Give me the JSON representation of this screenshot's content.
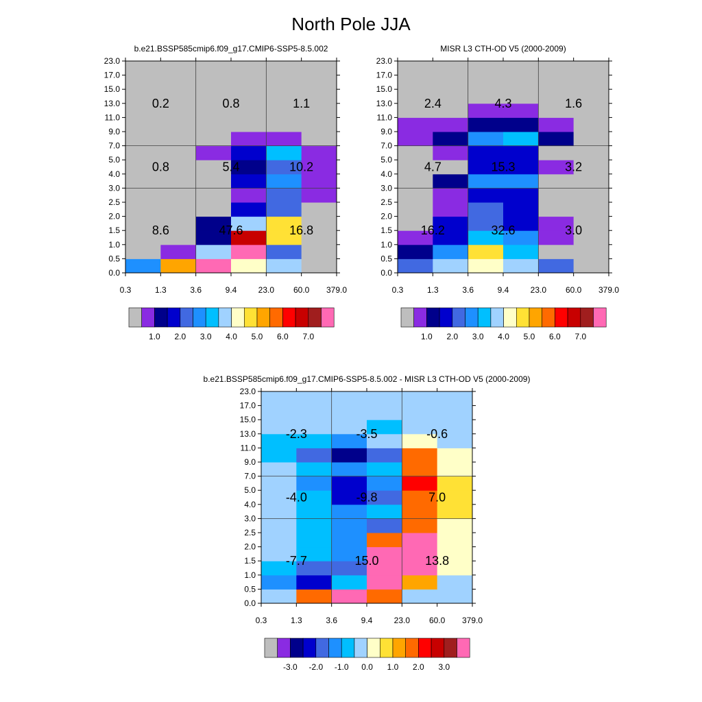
{
  "title": "North Pole JJA",
  "palettes": {
    "absolute": [
      "#bebebe",
      "#8a2be2",
      "#00008b",
      "#0000cd",
      "#4169e1",
      "#1e90ff",
      "#00bfff",
      "#a0d2ff",
      "#ffffc8",
      "#ffe135",
      "#ffa500",
      "#ff6a00",
      "#ff0000",
      "#c80000",
      "#a01e1e",
      "#ff69b4"
    ],
    "difference": [
      "#bebebe",
      "#8a2be2",
      "#00008b",
      "#0000cd",
      "#4169e1",
      "#1e90ff",
      "#00bfff",
      "#a0d2ff",
      "#ffffc8",
      "#ffe135",
      "#ffa500",
      "#ff6a00",
      "#ff0000",
      "#c80000",
      "#a01e1e",
      "#ff69b4"
    ]
  },
  "chart_data": [
    {
      "type": "heatmap",
      "title": "b.e21.BSSP585cmip6.f09_g17.CMIP6-SSP5-8.5.002",
      "x_ticks": [
        "0.3",
        "1.3",
        "3.6",
        "9.4",
        "23.0",
        "60.0",
        "379.0"
      ],
      "y_ticks": [
        "0.0",
        "0.5",
        "1.0",
        "1.5",
        "2.0",
        "2.5",
        "3.0",
        "4.0",
        "5.0",
        "7.0",
        "9.0",
        "11.0",
        "13.0",
        "15.0",
        "17.0",
        "23.0"
      ],
      "palette": "absolute",
      "grid": [
        [
          5,
          10,
          15,
          8,
          7,
          0
        ],
        [
          0,
          1,
          7,
          15,
          4,
          0
        ],
        [
          0,
          0,
          2,
          13,
          9,
          0
        ],
        [
          0,
          0,
          2,
          7,
          9,
          0
        ],
        [
          0,
          0,
          0,
          3,
          4,
          0
        ],
        [
          0,
          0,
          0,
          1,
          4,
          1
        ],
        [
          0,
          0,
          0,
          3,
          5,
          1
        ],
        [
          0,
          0,
          0,
          2,
          4,
          1
        ],
        [
          0,
          0,
          1,
          3,
          6,
          1
        ],
        [
          0,
          0,
          0,
          1,
          1,
          0
        ],
        [
          0,
          0,
          0,
          0,
          0,
          0
        ],
        [
          0,
          0,
          0,
          0,
          0,
          0
        ],
        [
          0,
          0,
          0,
          0,
          0,
          0
        ],
        [
          0,
          0,
          0,
          0,
          0,
          0
        ],
        [
          0,
          0,
          0,
          0,
          0,
          0
        ]
      ],
      "block_values": [
        [
          "8.6",
          "47.6",
          "16.8"
        ],
        [
          "0.8",
          "5.4",
          "10.2"
        ],
        [
          "0.2",
          "0.8",
          "1.1"
        ]
      ],
      "colorbar_labels": [
        "1.0",
        "2.0",
        "3.0",
        "4.0",
        "5.0",
        "6.0",
        "7.0"
      ]
    },
    {
      "type": "heatmap",
      "title": "MISR L3 CTH-OD V5 (2000-2009)",
      "x_ticks": [
        "0.3",
        "1.3",
        "3.6",
        "9.4",
        "23.0",
        "60.0",
        "379.0"
      ],
      "y_ticks": [
        "0.0",
        "0.5",
        "1.0",
        "1.5",
        "2.0",
        "2.5",
        "3.0",
        "4.0",
        "5.0",
        "7.0",
        "9.0",
        "11.0",
        "13.0",
        "15.0",
        "17.0",
        "23.0"
      ],
      "palette": "absolute",
      "grid": [
        [
          4,
          7,
          8,
          7,
          4,
          0
        ],
        [
          2,
          5,
          9,
          6,
          0,
          0
        ],
        [
          1,
          3,
          6,
          5,
          1,
          0
        ],
        [
          0,
          3,
          4,
          3,
          1,
          0
        ],
        [
          0,
          1,
          4,
          3,
          0,
          0
        ],
        [
          0,
          1,
          3,
          3,
          0,
          0
        ],
        [
          0,
          2,
          5,
          5,
          0,
          0
        ],
        [
          0,
          0,
          3,
          3,
          1,
          0
        ],
        [
          0,
          1,
          3,
          3,
          0,
          0
        ],
        [
          1,
          2,
          5,
          6,
          2,
          0
        ],
        [
          1,
          1,
          2,
          2,
          1,
          0
        ],
        [
          0,
          0,
          1,
          1,
          0,
          0
        ],
        [
          0,
          0,
          0,
          0,
          0,
          0
        ],
        [
          0,
          0,
          0,
          0,
          0,
          0
        ],
        [
          0,
          0,
          0,
          0,
          0,
          0
        ]
      ],
      "block_values": [
        [
          "16.2",
          "32.6",
          "3.0"
        ],
        [
          "4.7",
          "15.3",
          "3.2"
        ],
        [
          "2.4",
          "4.3",
          "1.6"
        ]
      ],
      "colorbar_labels": [
        "1.0",
        "2.0",
        "3.0",
        "4.0",
        "5.0",
        "6.0",
        "7.0"
      ]
    },
    {
      "type": "heatmap",
      "title": "b.e21.BSSP585cmip6.f09_g17.CMIP6-SSP5-8.5.002 - MISR L3 CTH-OD V5 (2000-2009)",
      "x_ticks": [
        "0.3",
        "1.3",
        "3.6",
        "9.4",
        "23.0",
        "60.0",
        "379.0"
      ],
      "y_ticks": [
        "0.0",
        "0.5",
        "1.0",
        "1.5",
        "2.0",
        "2.5",
        "3.0",
        "4.0",
        "5.0",
        "7.0",
        "9.0",
        "11.0",
        "13.0",
        "15.0",
        "17.0",
        "23.0"
      ],
      "palette": "difference",
      "grid": [
        [
          7,
          11,
          15,
          11,
          7,
          7
        ],
        [
          5,
          3,
          6,
          15,
          10,
          7
        ],
        [
          6,
          4,
          4,
          15,
          15,
          8
        ],
        [
          7,
          6,
          5,
          15,
          15,
          8
        ],
        [
          7,
          6,
          5,
          11,
          15,
          8
        ],
        [
          7,
          6,
          5,
          4,
          11,
          8
        ],
        [
          7,
          6,
          5,
          6,
          11,
          9
        ],
        [
          7,
          6,
          3,
          4,
          11,
          9
        ],
        [
          7,
          5,
          3,
          5,
          12,
          9
        ],
        [
          7,
          6,
          5,
          6,
          11,
          8
        ],
        [
          6,
          4,
          2,
          4,
          11,
          8
        ],
        [
          6,
          6,
          5,
          7,
          8,
          7
        ],
        [
          7,
          7,
          7,
          6,
          7,
          7
        ],
        [
          7,
          7,
          7,
          7,
          7,
          7
        ],
        [
          7,
          7,
          7,
          7,
          7,
          7
        ]
      ],
      "block_values": [
        [
          "-7.7",
          "15.0",
          "13.8"
        ],
        [
          "-4.0",
          "-9.8",
          "7.0"
        ],
        [
          "-2.3",
          "-3.5",
          "-0.6"
        ]
      ],
      "colorbar_labels": [
        "-3.0",
        "-2.0",
        "-1.0",
        "0.0",
        "1.0",
        "2.0",
        "3.0"
      ]
    }
  ]
}
